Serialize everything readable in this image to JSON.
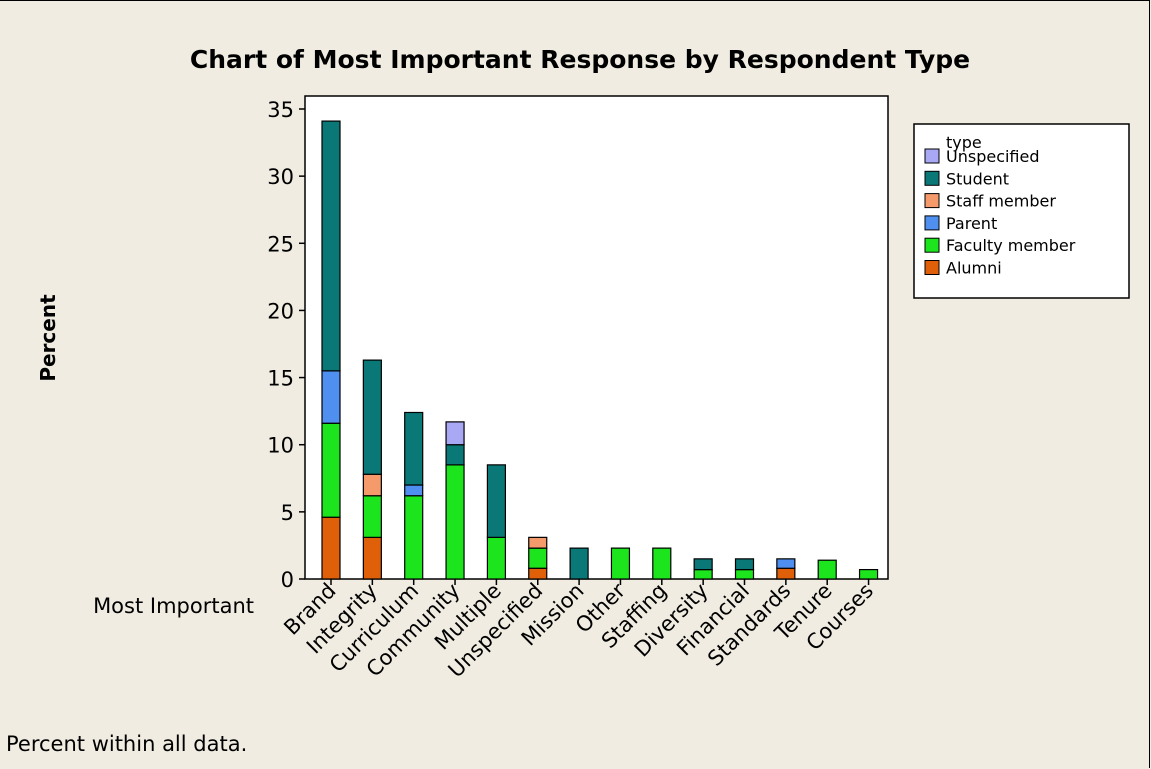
{
  "chart_data": {
    "type": "bar",
    "stacked": true,
    "title": "Chart of Most Important Response by Respondent Type",
    "xlabel": "Most Important",
    "ylabel": "Percent",
    "ylim": [
      0,
      35
    ],
    "yticks": [
      0,
      5,
      10,
      15,
      20,
      25,
      30,
      35
    ],
    "categories": [
      "Brand",
      "Integrity",
      "Curriculum",
      "Community",
      "Multiple",
      "Unspecified",
      "Mission",
      "Other",
      "Staffing",
      "Diversity",
      "Financial",
      "Standards",
      "Tenure",
      "Courses"
    ],
    "legend_title": "type",
    "legend_position": "right",
    "series": [
      {
        "name": "Alumni",
        "color": "#e0600a",
        "values": [
          4.6,
          3.1,
          0,
          0,
          0,
          0.8,
          0,
          0,
          0,
          0,
          0,
          0.8,
          0,
          0
        ]
      },
      {
        "name": "Faculty member",
        "color": "#1de51d",
        "values": [
          7.0,
          3.1,
          6.2,
          8.5,
          3.1,
          1.5,
          0,
          2.3,
          2.3,
          0.7,
          0.7,
          0,
          1.4,
          0.7
        ]
      },
      {
        "name": "Parent",
        "color": "#4f8ff0",
        "values": [
          3.9,
          0,
          0.8,
          0,
          0,
          0,
          0,
          0,
          0,
          0,
          0,
          0.7,
          0,
          0
        ]
      },
      {
        "name": "Staff member",
        "color": "#f59a6a",
        "values": [
          0,
          1.6,
          0,
          0,
          0,
          0.8,
          0,
          0,
          0,
          0,
          0,
          0,
          0,
          0
        ]
      },
      {
        "name": "Student",
        "color": "#0b7878",
        "values": [
          18.6,
          8.5,
          5.4,
          1.5,
          5.4,
          0,
          2.3,
          0,
          0,
          0.8,
          0.8,
          0,
          0,
          0
        ]
      },
      {
        "name": "Unspecified",
        "color": "#a8a8f5",
        "values": [
          0,
          0,
          0,
          1.7,
          0,
          0,
          0,
          0,
          0,
          0,
          0,
          0,
          0,
          0
        ]
      }
    ],
    "legend_order": [
      "Unspecified",
      "Student",
      "Staff member",
      "Parent",
      "Faculty member",
      "Alumni"
    ],
    "footnote": "Percent within all data."
  }
}
